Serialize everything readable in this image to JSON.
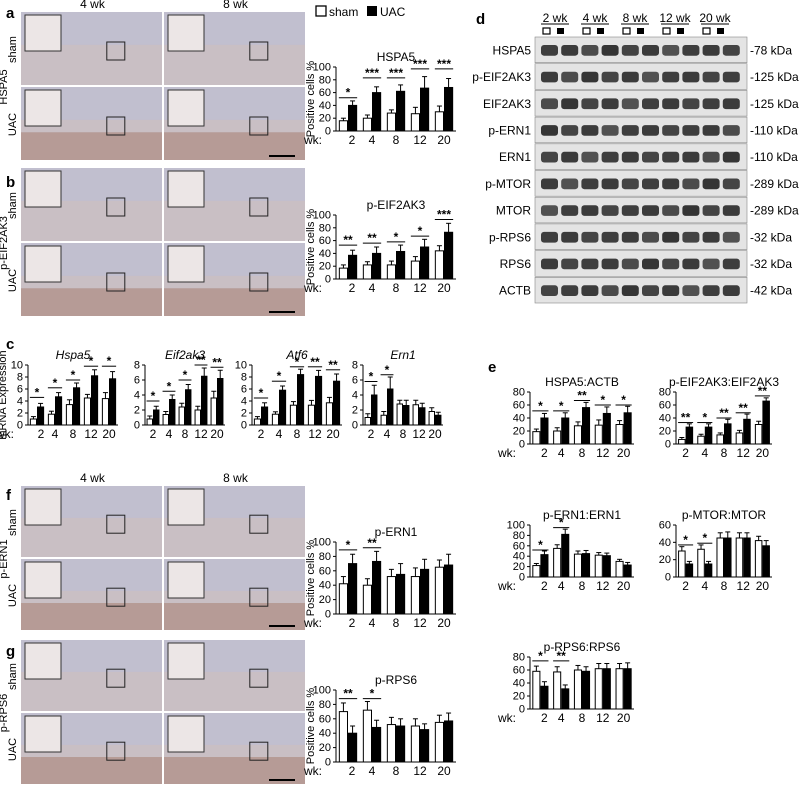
{
  "panel_letters": {
    "a": "a",
    "b": "b",
    "c": "c",
    "d": "d",
    "e": "e",
    "f": "f",
    "g": "g"
  },
  "histology": {
    "col_4wk": "4 wk",
    "col_8wk": "8 wk",
    "sham": "sham",
    "uac": "UAC",
    "a_marker": "HSPA5",
    "b_marker": "p-EIF2AK3",
    "f_marker": "p-ERN1",
    "g_marker": "p-RPS6",
    "colors": {
      "bg": "#d9d1cf",
      "tissue": "#c9bfc4",
      "stain": "#8a4a2a",
      "blue": "#b9bfd9"
    }
  },
  "legend": {
    "sham": "sham",
    "uac": "UAC"
  },
  "axis_common": {
    "wk_prefix": "wk:",
    "weeks": [
      "2",
      "4",
      "8",
      "12",
      "20"
    ],
    "positive_cells": "Positive cells %",
    "mrna_expression": "mRNA Expression"
  },
  "bar_colors": {
    "sham": "#ffffff",
    "uac": "#000000",
    "edge": "#000000"
  },
  "western": {
    "weeks": [
      "2 wk",
      "4 wk",
      "8 wk",
      "12 wk",
      "20 wk"
    ],
    "rows": [
      {
        "name": "HSPA5",
        "kda": "-78 kDa"
      },
      {
        "name": "p-EIF2AK3",
        "kda": "-125 kDa"
      },
      {
        "name": "EIF2AK3",
        "kda": "-125 kDa"
      },
      {
        "name": "p-ERN1",
        "kda": "-110 kDa"
      },
      {
        "name": "ERN1",
        "kda": "-110 kDa"
      },
      {
        "name": "p-MTOR",
        "kda": "-289 kDa"
      },
      {
        "name": "MTOR",
        "kda": "-289 kDa"
      },
      {
        "name": "p-RPS6",
        "kda": "-32 kDa"
      },
      {
        "name": "RPS6",
        "kda": "-32 kDa"
      },
      {
        "name": "ACTB",
        "kda": "-42 kDa"
      }
    ]
  },
  "chart_data": [
    {
      "id": "a",
      "type": "bar",
      "title": "HSPA5",
      "ylabel": "Positive cells %",
      "xlabel": "wk:",
      "ylim": [
        0,
        100
      ],
      "yticks": [
        0,
        20,
        40,
        60,
        80,
        100
      ],
      "categories": [
        "2",
        "4",
        "8",
        "12",
        "20"
      ],
      "series": [
        {
          "name": "sham",
          "values": [
            16,
            20,
            28,
            27,
            30
          ],
          "err": [
            4,
            5,
            5,
            10,
            9
          ]
        },
        {
          "name": "UAC",
          "values": [
            40,
            60,
            62,
            67,
            68
          ],
          "err": [
            7,
            9,
            10,
            18,
            14
          ]
        }
      ],
      "sig": [
        "*",
        "***",
        "***",
        "***",
        "***"
      ],
      "sig_y": [
        52,
        83,
        83,
        97,
        97
      ],
      "italic": false
    },
    {
      "id": "b",
      "type": "bar",
      "title": "p-EIF2AK3",
      "ylabel": "Positive cells %",
      "xlabel": "wk:",
      "ylim": [
        0,
        100
      ],
      "yticks": [
        0,
        20,
        40,
        60,
        80,
        100
      ],
      "categories": [
        "2",
        "4",
        "8",
        "12",
        "20"
      ],
      "series": [
        {
          "name": "sham",
          "values": [
            17,
            22,
            22,
            28,
            44
          ],
          "err": [
            5,
            5,
            6,
            7,
            8
          ]
        },
        {
          "name": "UAC",
          "values": [
            37,
            40,
            43,
            50,
            73
          ],
          "err": [
            8,
            10,
            10,
            12,
            14
          ]
        }
      ],
      "sig": [
        "**",
        "**",
        "*",
        "*",
        "***"
      ],
      "sig_y": [
        53,
        56,
        58,
        67,
        93
      ],
      "italic": false
    },
    {
      "id": "c1",
      "type": "bar",
      "title": "Hspa5",
      "ylabel": "mRNA Expression",
      "xlabel": "wk:",
      "ylim": [
        0,
        10
      ],
      "yticks": [
        0,
        2,
        4,
        6,
        8,
        10
      ],
      "categories": [
        "2",
        "4",
        "8",
        "12",
        "20"
      ],
      "series": [
        {
          "name": "sham",
          "values": [
            1.0,
            1.8,
            3.4,
            4.5,
            4.4
          ],
          "err": [
            0.4,
            0.5,
            0.8,
            0.6,
            1.0
          ]
        },
        {
          "name": "UAC",
          "values": [
            3.0,
            4.7,
            6.2,
            8.2,
            7.7
          ],
          "err": [
            0.6,
            0.7,
            0.8,
            1.0,
            1.2
          ]
        }
      ],
      "sig": [
        "*",
        "*",
        "*",
        "*",
        "*"
      ],
      "sig_y": [
        4.6,
        6.2,
        7.5,
        9.8,
        9.8
      ],
      "italic": true
    },
    {
      "id": "c2",
      "type": "bar",
      "title": "Eif2ak3",
      "ylabel": "",
      "xlabel": "",
      "ylim": [
        0,
        8
      ],
      "yticks": [
        0,
        2,
        4,
        6,
        8
      ],
      "categories": [
        "2",
        "4",
        "8",
        "12",
        "20"
      ],
      "series": [
        {
          "name": "sham",
          "values": [
            0.8,
            1.4,
            2.4,
            2.0,
            3.6
          ],
          "err": [
            0.4,
            0.4,
            0.5,
            0.5,
            0.9
          ]
        },
        {
          "name": "UAC",
          "values": [
            2.0,
            3.4,
            4.7,
            6.5,
            6.2
          ],
          "err": [
            0.5,
            0.6,
            0.7,
            1.1,
            1.1
          ]
        }
      ],
      "sig": [
        "*",
        "*",
        "*",
        "**",
        "**"
      ],
      "sig_y": [
        3.2,
        4.5,
        6.0,
        8.0,
        7.7
      ],
      "italic": true
    },
    {
      "id": "c3",
      "type": "bar",
      "title": "Atf6",
      "ylabel": "",
      "xlabel": "",
      "ylim": [
        0,
        10
      ],
      "yticks": [
        0,
        2,
        4,
        6,
        8,
        10
      ],
      "categories": [
        "2",
        "4",
        "8",
        "12",
        "20"
      ],
      "series": [
        {
          "name": "sham",
          "values": [
            1.0,
            1.8,
            3.3,
            3.3,
            3.7
          ],
          "err": [
            0.4,
            0.4,
            0.6,
            0.8,
            0.9
          ]
        },
        {
          "name": "UAC",
          "values": [
            3.0,
            5.8,
            8.4,
            8.1,
            7.3
          ],
          "err": [
            0.7,
            0.7,
            0.9,
            1.0,
            1.2
          ]
        }
      ],
      "sig": [
        "*",
        "*",
        "*",
        "**",
        "**"
      ],
      "sig_y": [
        4.5,
        7.3,
        9.7,
        9.7,
        9.2
      ],
      "italic": true
    },
    {
      "id": "c4",
      "type": "bar",
      "title": "Ern1",
      "ylabel": "",
      "xlabel": "",
      "ylim": [
        0,
        8
      ],
      "yticks": [
        0,
        2,
        4,
        6,
        8
      ],
      "categories": [
        "2",
        "4",
        "8",
        "12",
        "20"
      ],
      "series": [
        {
          "name": "sham",
          "values": [
            1.0,
            1.3,
            2.8,
            2.7,
            1.8
          ],
          "err": [
            0.5,
            0.5,
            0.5,
            0.6,
            0.5
          ]
        },
        {
          "name": "UAC",
          "values": [
            4.0,
            4.8,
            2.6,
            2.3,
            1.3
          ],
          "err": [
            1.3,
            1.6,
            0.7,
            0.6,
            0.4
          ]
        }
      ],
      "sig": [
        "*",
        "*",
        "",
        "",
        ""
      ],
      "sig_y": [
        5.8,
        6.7,
        0,
        0,
        0
      ],
      "italic": true
    },
    {
      "id": "e1",
      "type": "bar",
      "title": "HSPA5:ACTB",
      "ylabel": "",
      "xlabel": "wk:",
      "ylim": [
        0,
        80
      ],
      "yticks": [
        0,
        20,
        40,
        60,
        80
      ],
      "categories": [
        "2",
        "4",
        "8",
        "12",
        "20"
      ],
      "series": [
        {
          "name": "sham",
          "values": [
            19,
            20,
            28,
            29,
            30
          ],
          "err": [
            4,
            5,
            6,
            8,
            6
          ]
        },
        {
          "name": "UAC",
          "values": [
            40,
            40,
            56,
            47,
            48
          ],
          "err": [
            7,
            8,
            8,
            10,
            10
          ]
        }
      ],
      "sig": [
        "*",
        "*",
        "**",
        "*",
        "*"
      ],
      "sig_y": [
        51,
        51,
        67,
        60,
        60
      ],
      "italic": false
    },
    {
      "id": "e2",
      "type": "bar",
      "title": "p-EIF2AK3:EIF2AK3",
      "ylabel": "",
      "xlabel": "",
      "ylim": [
        0,
        80
      ],
      "yticks": [
        0,
        20,
        40,
        60,
        80
      ],
      "categories": [
        "2",
        "4",
        "8",
        "12",
        "20"
      ],
      "series": [
        {
          "name": "sham",
          "values": [
            7,
            12,
            14,
            17,
            30
          ],
          "err": [
            3,
            3,
            3,
            4,
            5
          ]
        },
        {
          "name": "UAC",
          "values": [
            26,
            26,
            31,
            38,
            66
          ],
          "err": [
            5,
            5,
            7,
            8,
            5
          ]
        }
      ],
      "sig": [
        "**",
        "*",
        "**",
        "**",
        "**"
      ],
      "sig_y": [
        33,
        33,
        40,
        48,
        74
      ],
      "italic": false
    },
    {
      "id": "e3",
      "type": "bar",
      "title": "p-ERN1:ERN1",
      "ylabel": "",
      "xlabel": "wk:",
      "ylim": [
        0,
        100
      ],
      "yticks": [
        0,
        20,
        40,
        60,
        80,
        100
      ],
      "categories": [
        "2",
        "4",
        "8",
        "12",
        "20"
      ],
      "series": [
        {
          "name": "sham",
          "values": [
            22,
            55,
            44,
            42,
            30
          ],
          "err": [
            4,
            7,
            6,
            5,
            4
          ]
        },
        {
          "name": "UAC",
          "values": [
            43,
            82,
            45,
            41,
            23
          ],
          "err": [
            7,
            10,
            6,
            5,
            5
          ]
        }
      ],
      "sig": [
        "*",
        "*",
        "",
        "",
        ""
      ],
      "sig_y": [
        52,
        95,
        0,
        0,
        0
      ],
      "italic": false
    },
    {
      "id": "e4",
      "type": "bar",
      "title": "p-MTOR:MTOR",
      "ylabel": "",
      "xlabel": "",
      "ylim": [
        0,
        60
      ],
      "yticks": [
        0,
        20,
        40,
        60
      ],
      "categories": [
        "2",
        "4",
        "8",
        "12",
        "20"
      ],
      "series": [
        {
          "name": "sham",
          "values": [
            30,
            32,
            45,
            45,
            42
          ],
          "err": [
            5,
            5,
            6,
            6,
            5
          ]
        },
        {
          "name": "UAC",
          "values": [
            15,
            15,
            45,
            45,
            36
          ],
          "err": [
            3,
            3,
            7,
            6,
            6
          ]
        }
      ],
      "sig": [
        "*",
        "*",
        "",
        "",
        ""
      ],
      "sig_y": [
        37,
        39,
        0,
        0,
        0
      ],
      "italic": false
    },
    {
      "id": "e5",
      "type": "bar",
      "title": "p-RPS6:RPS6",
      "ylabel": "",
      "xlabel": "wk:",
      "ylim": [
        0,
        80
      ],
      "yticks": [
        0,
        20,
        40,
        60,
        80
      ],
      "categories": [
        "2",
        "4",
        "8",
        "12",
        "20"
      ],
      "series": [
        {
          "name": "sham",
          "values": [
            58,
            57,
            60,
            62,
            62
          ],
          "err": [
            8,
            8,
            7,
            8,
            8
          ]
        },
        {
          "name": "UAC",
          "values": [
            35,
            31,
            58,
            62,
            62
          ],
          "err": [
            7,
            6,
            7,
            8,
            9
          ]
        }
      ],
      "sig": [
        "*",
        "**",
        "",
        "",
        ""
      ],
      "sig_y": [
        74,
        74,
        0,
        0,
        0
      ],
      "italic": false
    },
    {
      "id": "f",
      "type": "bar",
      "title": "p-ERN1",
      "ylabel": "Positive cells %",
      "xlabel": "wk:",
      "ylim": [
        0,
        100
      ],
      "yticks": [
        0,
        20,
        40,
        60,
        80,
        100
      ],
      "categories": [
        "2",
        "4",
        "8",
        "12",
        "20"
      ],
      "series": [
        {
          "name": "sham",
          "values": [
            42,
            40,
            52,
            52,
            65
          ],
          "err": [
            10,
            9,
            10,
            12,
            10
          ]
        },
        {
          "name": "UAC",
          "values": [
            70,
            73,
            55,
            62,
            68
          ],
          "err": [
            13,
            14,
            15,
            14,
            15
          ]
        }
      ],
      "sig": [
        "*",
        "**",
        "",
        "",
        ""
      ],
      "sig_y": [
        89,
        92,
        0,
        0,
        0
      ],
      "italic": false
    },
    {
      "id": "g",
      "type": "bar",
      "title": "p-RPS6",
      "ylabel": "Positive cells %",
      "xlabel": "wk:",
      "ylim": [
        0,
        100
      ],
      "yticks": [
        0,
        20,
        40,
        60,
        80,
        100
      ],
      "categories": [
        "2",
        "4",
        "8",
        "12",
        "20"
      ],
      "series": [
        {
          "name": "sham",
          "values": [
            70,
            72,
            52,
            50,
            55
          ],
          "err": [
            12,
            12,
            10,
            10,
            10
          ]
        },
        {
          "name": "UAC",
          "values": [
            40,
            48,
            50,
            45,
            57
          ],
          "err": [
            10,
            10,
            10,
            8,
            11
          ]
        }
      ],
      "sig": [
        "**",
        "*",
        "",
        "",
        ""
      ],
      "sig_y": [
        88,
        88,
        0,
        0,
        0
      ],
      "italic": false
    }
  ]
}
